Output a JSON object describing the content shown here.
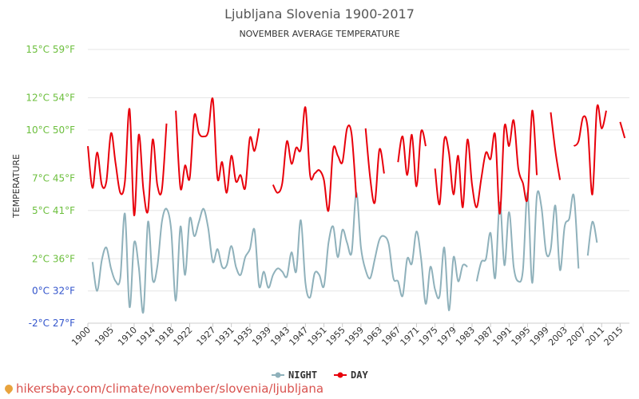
{
  "chart_data": {
    "type": "line",
    "title": "Ljubljana Slovenia 1900-2017",
    "subtitle": "NOVEMBER AVERAGE TEMPERATURE",
    "ylabel": "TEMPERATURE",
    "ylim": [
      -2,
      15
    ],
    "yticks": [
      {
        "value": 15,
        "label": "15°C 59°F",
        "color": "#6cbf3d"
      },
      {
        "value": 12,
        "label": "12°C 54°F",
        "color": "#6cbf3d"
      },
      {
        "value": 10,
        "label": "10°C 50°F",
        "color": "#6cbf3d"
      },
      {
        "value": 7,
        "label": "7°C 45°F",
        "color": "#6cbf3d"
      },
      {
        "value": 5,
        "label": "5°C 41°F",
        "color": "#6cbf3d"
      },
      {
        "value": 2,
        "label": "2°C 36°F",
        "color": "#6cbf3d"
      },
      {
        "value": 0,
        "label": "0°C 32°F",
        "color": "#3355cc"
      },
      {
        "value": -2,
        "label": "-2°C 27°F",
        "color": "#3355cc"
      }
    ],
    "xlim": [
      1900,
      2017
    ],
    "xtick_labels": [
      "1900",
      "1905",
      "1910",
      "1914",
      "1918",
      "1922",
      "1927",
      "1931",
      "1935",
      "1939",
      "1943",
      "1947",
      "1951",
      "1955",
      "1959",
      "1963",
      "1967",
      "1971",
      "1975",
      "1979",
      "1983",
      "1987",
      "1991",
      "1995",
      "1999",
      "2003",
      "2007",
      "2011",
      "2015"
    ],
    "series": [
      {
        "name": "NIGHT",
        "color": "#8fb1bb",
        "values": [
          [
            1900,
            null
          ],
          [
            1901,
            1.8
          ],
          [
            1902,
            0.0
          ],
          [
            1903,
            1.9
          ],
          [
            1904,
            2.7
          ],
          [
            1905,
            1.4
          ],
          [
            1906,
            0.6
          ],
          [
            1907,
            0.8
          ],
          [
            1908,
            4.8
          ],
          [
            1909,
            -1.0
          ],
          [
            1910,
            3.0
          ],
          [
            1911,
            1.5
          ],
          [
            1912,
            -1.3
          ],
          [
            1913,
            4.3
          ],
          [
            1914,
            0.7
          ],
          [
            1915,
            1.5
          ],
          [
            1916,
            4.3
          ],
          [
            1917,
            5.1
          ],
          [
            1918,
            3.8
          ],
          [
            1919,
            -0.6
          ],
          [
            1920,
            4.0
          ],
          [
            1921,
            1.0
          ],
          [
            1922,
            4.5
          ],
          [
            1923,
            3.4
          ],
          [
            1924,
            4.3
          ],
          [
            1925,
            5.1
          ],
          [
            1926,
            3.9
          ],
          [
            1927,
            1.8
          ],
          [
            1928,
            2.6
          ],
          [
            1929,
            1.5
          ],
          [
            1930,
            1.6
          ],
          [
            1931,
            2.8
          ],
          [
            1932,
            1.5
          ],
          [
            1933,
            1.0
          ],
          [
            1934,
            2.1
          ],
          [
            1935,
            2.6
          ],
          [
            1936,
            3.8
          ],
          [
            1937,
            0.3
          ],
          [
            1938,
            1.2
          ],
          [
            1939,
            0.2
          ],
          [
            1940,
            1.0
          ],
          [
            1941,
            1.4
          ],
          [
            1942,
            1.2
          ],
          [
            1943,
            0.9
          ],
          [
            1944,
            2.4
          ],
          [
            1945,
            1.2
          ],
          [
            1946,
            4.4
          ],
          [
            1947,
            0.5
          ],
          [
            1948,
            -0.4
          ],
          [
            1949,
            1.1
          ],
          [
            1950,
            1.0
          ],
          [
            1951,
            0.3
          ],
          [
            1952,
            3.0
          ],
          [
            1953,
            4.0
          ],
          [
            1954,
            2.1
          ],
          [
            1955,
            3.8
          ],
          [
            1956,
            3.0
          ],
          [
            1957,
            2.4
          ],
          [
            1958,
            6.1
          ],
          [
            1959,
            2.7
          ],
          [
            1960,
            1.3
          ],
          [
            1961,
            0.8
          ],
          [
            1962,
            2.0
          ],
          [
            1963,
            3.2
          ],
          [
            1964,
            3.4
          ],
          [
            1965,
            2.9
          ],
          [
            1966,
            0.8
          ],
          [
            1967,
            0.6
          ],
          [
            1968,
            -0.3
          ],
          [
            1969,
            2.0
          ],
          [
            1970,
            1.7
          ],
          [
            1971,
            3.7
          ],
          [
            1972,
            2.0
          ],
          [
            1973,
            -0.8
          ],
          [
            1974,
            1.5
          ],
          [
            1975,
            0.1
          ],
          [
            1976,
            -0.3
          ],
          [
            1977,
            2.7
          ],
          [
            1978,
            -1.2
          ],
          [
            1979,
            2.1
          ],
          [
            1980,
            0.6
          ],
          [
            1981,
            1.6
          ],
          [
            1982,
            1.5
          ],
          [
            1983,
            null
          ],
          [
            1984,
            0.6
          ],
          [
            1985,
            1.8
          ],
          [
            1986,
            2.0
          ],
          [
            1987,
            3.6
          ],
          [
            1988,
            0.8
          ],
          [
            1989,
            5.5
          ],
          [
            1990,
            1.6
          ],
          [
            1991,
            4.9
          ],
          [
            1992,
            1.5
          ],
          [
            1993,
            0.6
          ],
          [
            1994,
            1.3
          ],
          [
            1995,
            6.1
          ],
          [
            1996,
            0.5
          ],
          [
            1997,
            5.9
          ],
          [
            1998,
            5.2
          ],
          [
            1999,
            2.4
          ],
          [
            2000,
            2.6
          ],
          [
            2001,
            5.3
          ],
          [
            2002,
            1.3
          ],
          [
            2003,
            4.0
          ],
          [
            2004,
            4.5
          ],
          [
            2005,
            5.9
          ],
          [
            2006,
            1.4
          ],
          [
            2007,
            null
          ],
          [
            2008,
            2.2
          ],
          [
            2009,
            4.3
          ],
          [
            2010,
            3.0
          ]
        ]
      },
      {
        "name": "DAY",
        "color": "#e8000b",
        "values": [
          [
            1900,
            9.0
          ],
          [
            1901,
            6.4
          ],
          [
            1902,
            8.6
          ],
          [
            1903,
            6.6
          ],
          [
            1904,
            6.8
          ],
          [
            1905,
            9.8
          ],
          [
            1906,
            7.9
          ],
          [
            1907,
            6.1
          ],
          [
            1908,
            6.8
          ],
          [
            1909,
            11.3
          ],
          [
            1910,
            4.7
          ],
          [
            1911,
            9.7
          ],
          [
            1912,
            6.3
          ],
          [
            1913,
            5.0
          ],
          [
            1914,
            9.4
          ],
          [
            1915,
            6.6
          ],
          [
            1916,
            6.3
          ],
          [
            1917,
            10.4
          ],
          [
            1918,
            null
          ],
          [
            1919,
            11.2
          ],
          [
            1920,
            6.4
          ],
          [
            1921,
            7.8
          ],
          [
            1922,
            7.0
          ],
          [
            1923,
            10.9
          ],
          [
            1924,
            9.8
          ],
          [
            1925,
            9.6
          ],
          [
            1926,
            9.9
          ],
          [
            1927,
            11.9
          ],
          [
            1928,
            7.0
          ],
          [
            1929,
            8.0
          ],
          [
            1930,
            6.1
          ],
          [
            1931,
            8.4
          ],
          [
            1932,
            6.8
          ],
          [
            1933,
            7.2
          ],
          [
            1934,
            6.4
          ],
          [
            1935,
            9.5
          ],
          [
            1936,
            8.7
          ],
          [
            1937,
            10.1
          ],
          [
            1938,
            null
          ],
          [
            1939,
            null
          ],
          [
            1940,
            6.6
          ],
          [
            1941,
            6.1
          ],
          [
            1942,
            6.7
          ],
          [
            1943,
            9.3
          ],
          [
            1944,
            7.9
          ],
          [
            1945,
            8.9
          ],
          [
            1946,
            8.8
          ],
          [
            1947,
            11.4
          ],
          [
            1948,
            7.2
          ],
          [
            1949,
            7.3
          ],
          [
            1950,
            7.5
          ],
          [
            1951,
            6.9
          ],
          [
            1952,
            5.0
          ],
          [
            1953,
            8.8
          ],
          [
            1954,
            8.4
          ],
          [
            1955,
            8.0
          ],
          [
            1956,
            10.1
          ],
          [
            1957,
            9.7
          ],
          [
            1958,
            5.8
          ],
          [
            1959,
            null
          ],
          [
            1960,
            10.1
          ],
          [
            1961,
            7.0
          ],
          [
            1962,
            5.5
          ],
          [
            1963,
            8.8
          ],
          [
            1964,
            7.3
          ],
          [
            1965,
            null
          ],
          [
            1966,
            null
          ],
          [
            1967,
            8.0
          ],
          [
            1968,
            9.6
          ],
          [
            1969,
            7.2
          ],
          [
            1970,
            9.7
          ],
          [
            1971,
            6.5
          ],
          [
            1972,
            9.9
          ],
          [
            1973,
            9.0
          ],
          [
            1974,
            null
          ],
          [
            1975,
            7.6
          ],
          [
            1976,
            5.4
          ],
          [
            1977,
            9.4
          ],
          [
            1978,
            8.6
          ],
          [
            1979,
            6.0
          ],
          [
            1980,
            8.4
          ],
          [
            1981,
            5.2
          ],
          [
            1982,
            9.4
          ],
          [
            1983,
            6.6
          ],
          [
            1984,
            5.2
          ],
          [
            1985,
            7.0
          ],
          [
            1986,
            8.6
          ],
          [
            1987,
            8.2
          ],
          [
            1988,
            9.7
          ],
          [
            1989,
            4.8
          ],
          [
            1990,
            10.2
          ],
          [
            1991,
            9.0
          ],
          [
            1992,
            10.6
          ],
          [
            1993,
            7.6
          ],
          [
            1994,
            6.7
          ],
          [
            1995,
            5.8
          ],
          [
            1996,
            11.2
          ],
          [
            1997,
            7.2
          ],
          [
            1998,
            null
          ],
          [
            1999,
            null
          ],
          [
            2000,
            11.1
          ],
          [
            2001,
            8.7
          ],
          [
            2002,
            6.9
          ],
          [
            2003,
            null
          ],
          [
            2004,
            null
          ],
          [
            2005,
            9.0
          ],
          [
            2006,
            9.3
          ],
          [
            2007,
            10.8
          ],
          [
            2008,
            10.1
          ],
          [
            2009,
            6.0
          ],
          [
            2010,
            11.4
          ],
          [
            2011,
            10.1
          ],
          [
            2012,
            11.2
          ],
          [
            2013,
            null
          ],
          [
            2014,
            null
          ],
          [
            2015,
            10.5
          ],
          [
            2016,
            9.5
          ],
          [
            2017,
            null
          ]
        ]
      }
    ],
    "legend_position": "bottom-center"
  },
  "watermark": "hikersbay.com/climate/november/slovenia/ljubljana"
}
